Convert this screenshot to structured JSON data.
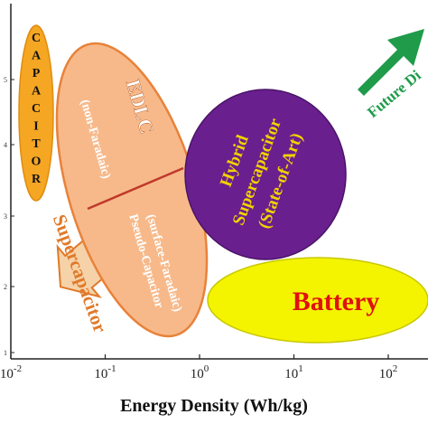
{
  "chart_data": {
    "type": "scatter",
    "xlabel": "Energy Density",
    "xunit": "(Wh/kg)",
    "xscale": "log",
    "xticks": [
      {
        "base": "10",
        "exp": "-2",
        "value": 0.01
      },
      {
        "base": "10",
        "exp": "-1",
        "value": 0.1
      },
      {
        "base": "10",
        "exp": "0",
        "value": 1
      },
      {
        "base": "10",
        "exp": "1",
        "value": 10
      },
      {
        "base": "10",
        "exp": "2",
        "value": 100
      }
    ],
    "yticks": [
      "1",
      "2",
      "3",
      "4",
      "5"
    ],
    "regions": [
      {
        "name": "capacitor",
        "letters": [
          "C",
          "A",
          "P",
          "A",
          "C",
          "I",
          "T",
          "O",
          "R"
        ],
        "color": "#f5a623"
      },
      {
        "name": "edlc",
        "title": "EDLC",
        "subtitle": "(non-Faradaic)",
        "color": "#f7b98a",
        "edge": "#e8823a"
      },
      {
        "name": "pseudo",
        "line1": "Pseudo-Capacitor",
        "line2": "(surface-Faradaic)"
      },
      {
        "name": "supercapacitor",
        "label": "Supercapacitor",
        "color": "#e07a2a"
      },
      {
        "name": "hybrid",
        "line1": "Hybrid",
        "line2": "Supercapacitor",
        "line3": "(State-of-Art)",
        "color": "#6a1f8f",
        "text_color": "#f2d200"
      },
      {
        "name": "battery",
        "label": "Battery",
        "color": "#f4f400",
        "text_color": "#e01010"
      }
    ],
    "annotation": {
      "label": "Future Di",
      "color": "#1f9b4a"
    }
  }
}
